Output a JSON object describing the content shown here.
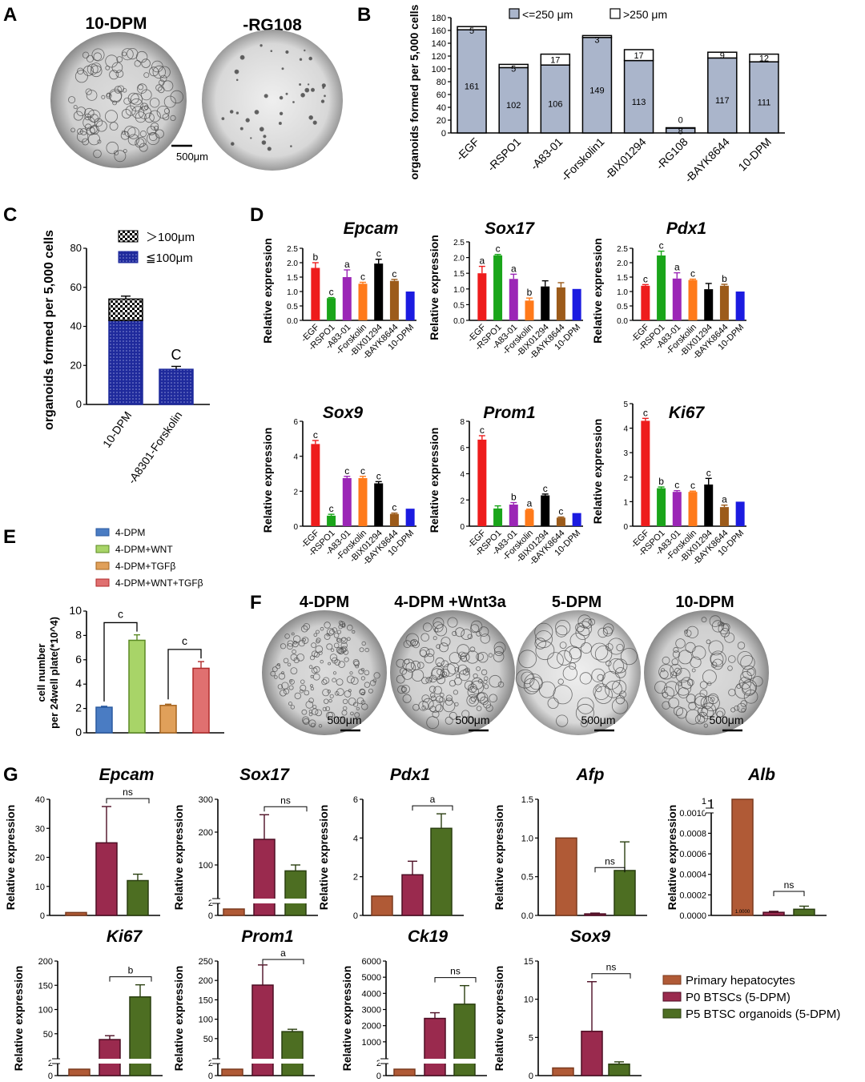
{
  "panel_labels": {
    "A": "A",
    "B": "B",
    "C": "C",
    "D": "D",
    "E": "E",
    "F": "F",
    "G": "G"
  },
  "panel_a": {
    "images": [
      {
        "title": "10-DPM",
        "style": "dense"
      },
      {
        "title": "-RG108",
        "style": "sparse"
      }
    ],
    "scale_bar": "500μm"
  },
  "panel_f": {
    "images": [
      {
        "title": "4-DPM",
        "scale": "500μm",
        "style": "small"
      },
      {
        "title": "4-DPM +Wnt3a",
        "scale": "500μm",
        "style": "medium"
      },
      {
        "title": "5-DPM",
        "scale": "500μm",
        "style": "large"
      },
      {
        "title": "10-DPM",
        "scale": "500μm",
        "style": "mixed"
      }
    ]
  },
  "colors": {
    "b_small": "#aab5cb",
    "b_large": "#ffffff",
    "c_bar": "#1f2a9c",
    "d_bars": [
      "#ee1c1c",
      "#1aa51a",
      "#9b26b6",
      "#ff7a1a",
      "#000000",
      "#9c5b1a",
      "#1b1be0"
    ],
    "e_bars": [
      "#4a7cc3",
      "#a8d468",
      "#e0a05a",
      "#e07070"
    ],
    "e_edges": [
      "#2a5aa0",
      "#5b8a24",
      "#a5641e",
      "#b02a2a"
    ],
    "g_bars": [
      "#b05a36",
      "#9a2a4e",
      "#4d6e22"
    ]
  },
  "chart_data": [
    {
      "id": "B",
      "type": "bar",
      "categories": [
        "-EGF",
        "-RSPO1",
        "-A83-01",
        "-Forskolin1",
        "-BIX01294",
        "-RG108",
        "-BAYK8644",
        "10-DPM"
      ],
      "series": [
        {
          "name": "<=250 μm",
          "values": [
            161,
            102,
            106,
            149,
            113,
            8,
            117,
            111
          ],
          "labels": [
            "161",
            "102",
            "106",
            "149",
            "113",
            "8",
            "117",
            "111"
          ]
        },
        {
          "name": ">250 μm",
          "values": [
            5,
            5,
            17,
            3,
            17,
            0,
            9,
            12
          ],
          "labels": [
            "5",
            "5",
            "17",
            "3",
            "17",
            "0",
            "9",
            "12"
          ]
        }
      ],
      "ylabel": "organoids formed per 5,000 cells",
      "yticks": [
        "0",
        "20",
        "40",
        "60",
        "80",
        "100",
        "120",
        "140",
        "160",
        "180"
      ],
      "ylim": [
        0,
        180
      ]
    },
    {
      "id": "C",
      "type": "bar",
      "categories": [
        "10-DPM",
        "-A8301-Forskolin"
      ],
      "series": [
        {
          "name": "≦100μm",
          "values": [
            43,
            18
          ]
        },
        {
          "name": "＞100μm",
          "values": [
            11,
            0
          ]
        }
      ],
      "errors": [
        1.5,
        1.5
      ],
      "sig": [
        "",
        "C"
      ],
      "ylabel": "organoids formed per 5,000 cells",
      "yticks": [
        "0",
        "20",
        "40",
        "60",
        "80"
      ],
      "ylim": [
        0,
        80
      ]
    },
    {
      "id": "D",
      "type": "bar",
      "categories": [
        "-EGF",
        "-RSPO1",
        "-A83-01",
        "-Forskolin",
        "-BIX01294",
        "-BAYK8644",
        "10-DPM"
      ],
      "ylabel": "Relative expression",
      "panels": [
        {
          "title": "Epcam",
          "values": [
            1.82,
            0.77,
            1.5,
            1.27,
            1.97,
            1.37,
            1.0
          ],
          "errors": [
            0.18,
            0.02,
            0.25,
            0.05,
            0.15,
            0.05,
            0
          ],
          "sig": [
            "b",
            "c",
            "a",
            "c",
            "c",
            "c",
            ""
          ],
          "yticks": [
            "0.0",
            "0.5",
            "1.0",
            "1.5",
            "2.0",
            "2.5"
          ],
          "ylim": [
            0,
            2.5
          ]
        },
        {
          "title": "Sox17",
          "values": [
            1.5,
            2.07,
            1.32,
            0.63,
            1.08,
            1.05,
            1.0
          ],
          "errors": [
            0.22,
            0.03,
            0.15,
            0.08,
            0.18,
            0.15,
            0
          ],
          "sig": [
            "a",
            "c",
            "a",
            "b",
            "",
            "",
            ""
          ],
          "yticks": [
            "0.0",
            "0.5",
            "1.0",
            "1.5",
            "2.0",
            "2.5"
          ],
          "ylim": [
            0,
            2.5
          ]
        },
        {
          "title": "Pdx1",
          "values": [
            1.2,
            2.25,
            1.45,
            1.4,
            1.08,
            1.2,
            1.0
          ],
          "errors": [
            0.04,
            0.15,
            0.2,
            0.03,
            0.2,
            0.05,
            0
          ],
          "sig": [
            "c",
            "c",
            "a",
            "c",
            "",
            "b",
            ""
          ],
          "yticks": [
            "0.0",
            "0.5",
            "1.0",
            "1.5",
            "2.0",
            "2.5"
          ],
          "ylim": [
            0,
            2.5
          ]
        },
        {
          "title": "Sox9",
          "values": [
            4.7,
            0.6,
            2.75,
            2.75,
            2.45,
            0.7,
            1.0
          ],
          "errors": [
            0.2,
            0.08,
            0.1,
            0.1,
            0.1,
            0.05,
            0
          ],
          "sig": [
            "c",
            "c",
            "c",
            "c",
            "c",
            "c",
            ""
          ],
          "yticks": [
            "0",
            "2",
            "4",
            "6"
          ],
          "ylim": [
            0,
            6
          ]
        },
        {
          "title": "Prom1",
          "values": [
            6.6,
            1.35,
            1.65,
            1.25,
            2.35,
            0.65,
            1.0
          ],
          "errors": [
            0.3,
            0.2,
            0.15,
            0.05,
            0.1,
            0.05,
            0
          ],
          "sig": [
            "c",
            "",
            "b",
            "a",
            "c",
            "c",
            ""
          ],
          "yticks": [
            "0",
            "2",
            "4",
            "6",
            "8"
          ],
          "ylim": [
            0,
            8
          ]
        },
        {
          "title": "Ki67",
          "values": [
            4.3,
            1.55,
            1.4,
            1.4,
            1.7,
            0.78,
            1.0
          ],
          "errors": [
            0.1,
            0.05,
            0.05,
            0.03,
            0.25,
            0.08,
            0
          ],
          "sig": [
            "c",
            "b",
            "c",
            "c",
            "c",
            "a",
            ""
          ],
          "yticks": [
            "0",
            "1",
            "2",
            "3",
            "4",
            "5"
          ],
          "ylim": [
            0,
            5
          ]
        }
      ]
    },
    {
      "id": "E",
      "type": "bar",
      "categories": [
        "4-DPM",
        "4-DPM+WNT",
        "4-DPM+TGFβ",
        "4-DPM+WNT+TGFβ"
      ],
      "values": [
        2.1,
        7.6,
        2.25,
        5.3
      ],
      "errors": [
        0.08,
        0.45,
        0.1,
        0.55
      ],
      "legend": [
        "4-DPM",
        "4-DPM+WNT",
        "4-DPM+TGFβ",
        "4-DPM+WNT+TGFβ"
      ],
      "sig": [
        "c",
        "c"
      ],
      "ylabel_line1": "cell number",
      "ylabel_line2": "per 24well plate(*10^4)",
      "yticks": [
        "0",
        "2",
        "4",
        "6",
        "8",
        "10"
      ],
      "ylim": [
        0,
        10
      ]
    },
    {
      "id": "G",
      "type": "bar",
      "legend": [
        "Primary hepatocytes",
        "P0 BTSCs (5-DPM)",
        "P5 BTSC organoids (5-DPM)"
      ],
      "ylabel": "Relative expression",
      "panels": [
        {
          "title": "Epcam",
          "values": [
            1,
            25,
            12
          ],
          "errors": [
            0,
            12.5,
            2.2
          ],
          "sig": "ns",
          "yticks": [
            "0",
            "10",
            "20",
            "30",
            "40"
          ],
          "ylim": [
            0,
            40
          ]
        },
        {
          "title": "Sox17",
          "values": [
            1,
            178,
            82
          ],
          "errors": [
            0,
            75,
            18
          ],
          "sig": "ns",
          "yticks": [
            "0",
            "2",
            "100",
            "200",
            "300"
          ]
        },
        {
          "title": "Pdx1",
          "values": [
            1,
            2.1,
            4.5
          ],
          "errors": [
            0,
            0.7,
            0.75
          ],
          "sig": "a",
          "yticks": [
            "0",
            "2",
            "4",
            "6"
          ],
          "ylim": [
            0,
            6
          ]
        },
        {
          "title": "Afp",
          "values": [
            1,
            0.02,
            0.58
          ],
          "errors": [
            0,
            0.01,
            0.37
          ],
          "sig": "ns",
          "yticks": [
            "0.0",
            "0.5",
            "1.0",
            "1.5"
          ],
          "ylim": [
            0,
            1.5
          ]
        },
        {
          "title": "Alb",
          "values": [
            1,
            3e-05,
            6e-05
          ],
          "errors": [
            0,
            1e-05,
            3e-05
          ],
          "sig": "ns",
          "yticks": [
            "0.0000",
            "0.0002",
            "0.0004",
            "0.0006",
            "0.0008",
            "0.0010",
            "1"
          ],
          "bar_note": "1.0000"
        },
        {
          "title": "Ki67",
          "values": [
            1,
            38,
            126
          ],
          "errors": [
            0,
            8,
            25
          ],
          "sig": "b",
          "yticks": [
            "0",
            "2",
            "50",
            "100",
            "150",
            "200"
          ]
        },
        {
          "title": "Prom1",
          "values": [
            1,
            188,
            68
          ],
          "errors": [
            0,
            52,
            6
          ],
          "sig": "a",
          "yticks": [
            "0",
            "2",
            "50",
            "100",
            "150",
            "200",
            "250"
          ]
        },
        {
          "title": "Ck19",
          "values": [
            1,
            2450,
            3330
          ],
          "errors": [
            0,
            350,
            1150
          ],
          "sig": "ns",
          "yticks": [
            "0",
            "2",
            "1000",
            "2000",
            "3000",
            "4000",
            "5000",
            "6000"
          ]
        },
        {
          "title": "Sox9",
          "values": [
            1,
            5.8,
            1.5
          ],
          "errors": [
            0,
            6.5,
            0.3
          ],
          "sig": "ns",
          "yticks": [
            "0",
            "5",
            "10",
            "15"
          ],
          "ylim": [
            0,
            15
          ]
        }
      ]
    }
  ]
}
